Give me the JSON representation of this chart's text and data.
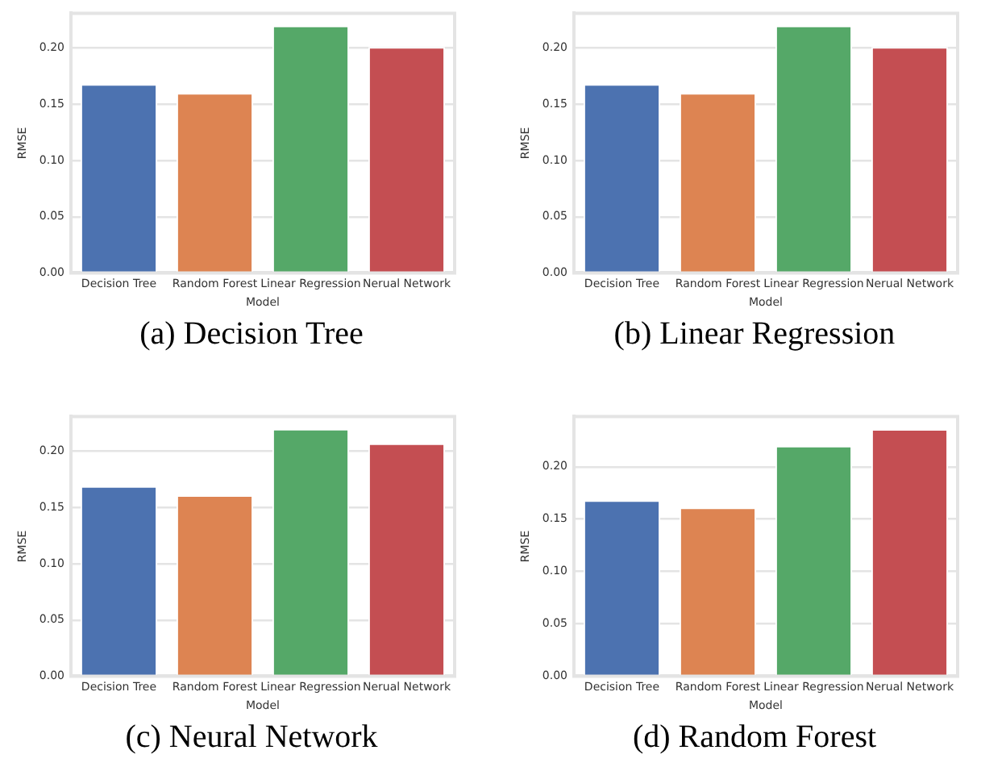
{
  "chart_data": [
    {
      "type": "bar",
      "title": "(a) Decision Tree",
      "xlabel": "Model",
      "ylabel": "RMSE",
      "categories": [
        "Decision Tree",
        "Random Forest",
        "Linear Regression",
        "Nerual Network"
      ],
      "values": [
        0.168,
        0.16,
        0.22,
        0.201
      ],
      "colors": [
        "#4c72b0",
        "#dd8452",
        "#55a868",
        "#c44e52"
      ],
      "ylim": [
        0,
        0.231
      ],
      "yticks": [
        {
          "value": 0,
          "label": "0.00"
        },
        {
          "value": 0.05,
          "label": "0.05"
        },
        {
          "value": 0.1,
          "label": "0.10"
        },
        {
          "value": 0.15,
          "label": "0.15"
        },
        {
          "value": 0.2,
          "label": "0.20"
        }
      ],
      "grid": "y"
    },
    {
      "type": "bar",
      "title": "(b) Linear Regression",
      "xlabel": "Model",
      "ylabel": "RMSE",
      "categories": [
        "Decision Tree",
        "Random Forest",
        "Linear Regression",
        "Nerual Network"
      ],
      "values": [
        0.168,
        0.16,
        0.22,
        0.201
      ],
      "colors": [
        "#4c72b0",
        "#dd8452",
        "#55a868",
        "#c44e52"
      ],
      "ylim": [
        0,
        0.231
      ],
      "yticks": [
        {
          "value": 0,
          "label": "0.00"
        },
        {
          "value": 0.05,
          "label": "0.05"
        },
        {
          "value": 0.1,
          "label": "0.10"
        },
        {
          "value": 0.15,
          "label": "0.15"
        },
        {
          "value": 0.2,
          "label": "0.20"
        }
      ],
      "grid": "y"
    },
    {
      "type": "bar",
      "title": "(c) Neural Network",
      "xlabel": "Model",
      "ylabel": "RMSE",
      "categories": [
        "Decision Tree",
        "Random Forest",
        "Linear Regression",
        "Nerual Network"
      ],
      "values": [
        0.169,
        0.161,
        0.22,
        0.207
      ],
      "colors": [
        "#4c72b0",
        "#dd8452",
        "#55a868",
        "#c44e52"
      ],
      "ylim": [
        0,
        0.231
      ],
      "yticks": [
        {
          "value": 0,
          "label": "0.00"
        },
        {
          "value": 0.05,
          "label": "0.05"
        },
        {
          "value": 0.1,
          "label": "0.10"
        },
        {
          "value": 0.15,
          "label": "0.15"
        },
        {
          "value": 0.2,
          "label": "0.20"
        }
      ],
      "grid": "y"
    },
    {
      "type": "bar",
      "title": "(d) Random Forest",
      "xlabel": "Model",
      "ylabel": "RMSE",
      "categories": [
        "Decision Tree",
        "Random Forest",
        "Linear Regression",
        "Nerual Network"
      ],
      "values": [
        0.168,
        0.161,
        0.22,
        0.236
      ],
      "colors": [
        "#4c72b0",
        "#dd8452",
        "#55a868",
        "#c44e52"
      ],
      "ylim": [
        0,
        0.248
      ],
      "yticks": [
        {
          "value": 0,
          "label": "0.00"
        },
        {
          "value": 0.05,
          "label": "0.05"
        },
        {
          "value": 0.1,
          "label": "0.10"
        },
        {
          "value": 0.15,
          "label": "0.15"
        },
        {
          "value": 0.2,
          "label": "0.20"
        }
      ],
      "grid": "y"
    }
  ]
}
